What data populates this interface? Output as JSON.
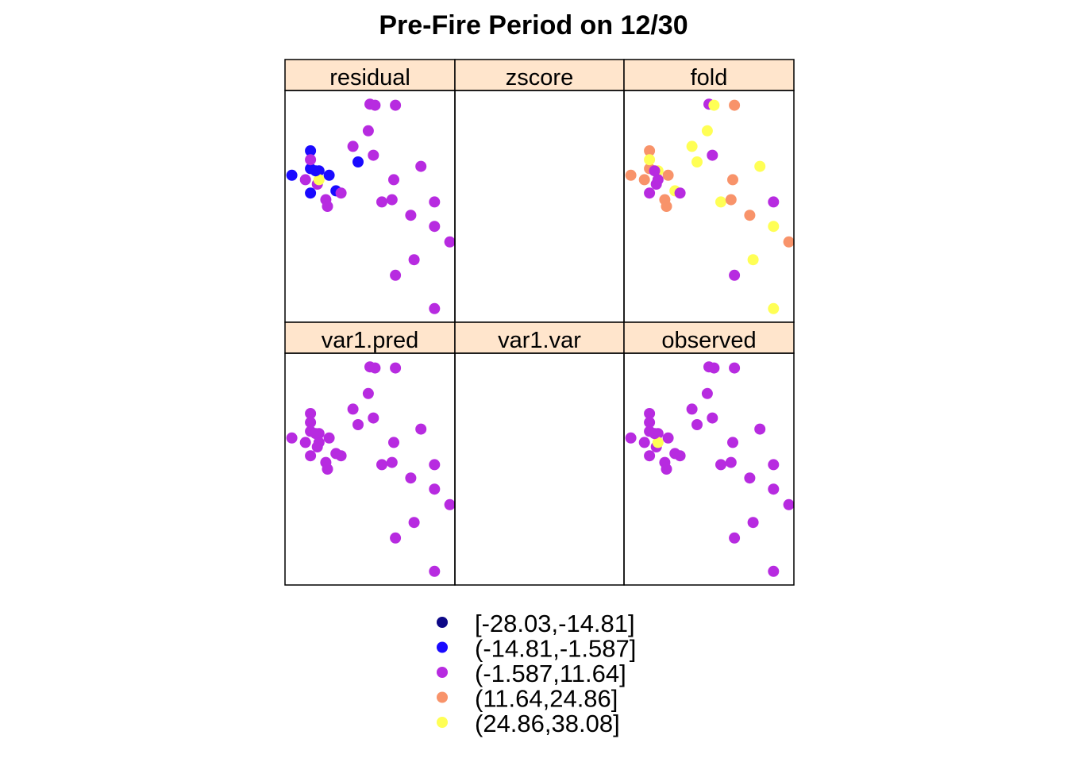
{
  "chart_data": {
    "type": "scatter",
    "title": "Pre-Fire Period on 12/30",
    "xlabel": "",
    "ylabel": "",
    "layout": "3 columns x 2 rows",
    "grid": false,
    "legend_position": "bottom",
    "panel_strip_color": "#FFE5CC",
    "classes": [
      {
        "label": "[-28.03,-14.81]",
        "color": "#0D0887"
      },
      {
        "label": "(-14.81,-1.587]",
        "color": "#1A0AFF"
      },
      {
        "label": "(-1.587,11.64]",
        "color": "#B72BE0"
      },
      {
        "label": "(11.64,24.86]",
        "color": "#F8936A"
      },
      {
        "label": "(24.86,38.08]",
        "color": "#FFFF55"
      }
    ],
    "points": [
      [
        0.04,
        0.64
      ],
      [
        0.5,
        0.96
      ],
      [
        0.53,
        0.955
      ],
      [
        0.65,
        0.955
      ],
      [
        0.49,
        0.84
      ],
      [
        0.4,
        0.77
      ],
      [
        0.52,
        0.73
      ],
      [
        0.15,
        0.75
      ],
      [
        0.15,
        0.67
      ],
      [
        0.2,
        0.66
      ],
      [
        0.26,
        0.64
      ],
      [
        0.12,
        0.62
      ],
      [
        0.19,
        0.6
      ],
      [
        0.3,
        0.57
      ],
      [
        0.15,
        0.56
      ],
      [
        0.24,
        0.53
      ],
      [
        0.25,
        0.5
      ],
      [
        0.43,
        0.7
      ],
      [
        0.8,
        0.68
      ],
      [
        0.64,
        0.62
      ],
      [
        0.57,
        0.52
      ],
      [
        0.63,
        0.53
      ],
      [
        0.88,
        0.52
      ],
      [
        0.74,
        0.46
      ],
      [
        0.88,
        0.41
      ],
      [
        0.97,
        0.34
      ],
      [
        0.76,
        0.26
      ],
      [
        0.65,
        0.19
      ],
      [
        0.88,
        0.04
      ],
      [
        0.33,
        0.56
      ],
      [
        0.2,
        0.62
      ],
      [
        0.15,
        0.71
      ],
      [
        0.18,
        0.66
      ]
    ],
    "panels": [
      {
        "name": "residual",
        "classes": [
          1,
          2,
          2,
          2,
          2,
          2,
          2,
          1,
          1,
          1,
          1,
          2,
          2,
          1,
          1,
          2,
          2,
          1,
          2,
          2,
          2,
          2,
          2,
          2,
          2,
          2,
          2,
          2,
          2,
          2,
          4,
          2,
          1
        ]
      },
      {
        "name": "zscore",
        "classes": []
      },
      {
        "name": "fold",
        "classes": [
          3,
          2,
          4,
          3,
          4,
          4,
          2,
          3,
          3,
          4,
          3,
          3,
          2,
          4,
          2,
          3,
          3,
          4,
          4,
          3,
          4,
          3,
          2,
          3,
          4,
          3,
          4,
          2,
          4,
          2,
          2,
          4,
          2
        ]
      },
      {
        "name": "var1.pred",
        "classes": [
          2,
          2,
          2,
          2,
          2,
          2,
          2,
          2,
          2,
          2,
          2,
          2,
          2,
          2,
          2,
          2,
          2,
          2,
          2,
          2,
          2,
          2,
          2,
          2,
          2,
          2,
          2,
          2,
          2,
          2,
          2,
          2,
          2
        ]
      },
      {
        "name": "var1.var",
        "classes": []
      },
      {
        "name": "observed",
        "classes": [
          2,
          2,
          2,
          2,
          2,
          2,
          2,
          2,
          2,
          2,
          2,
          2,
          2,
          2,
          2,
          2,
          2,
          2,
          2,
          2,
          2,
          2,
          2,
          2,
          2,
          2,
          2,
          2,
          2,
          2,
          4,
          2,
          2
        ]
      }
    ]
  }
}
